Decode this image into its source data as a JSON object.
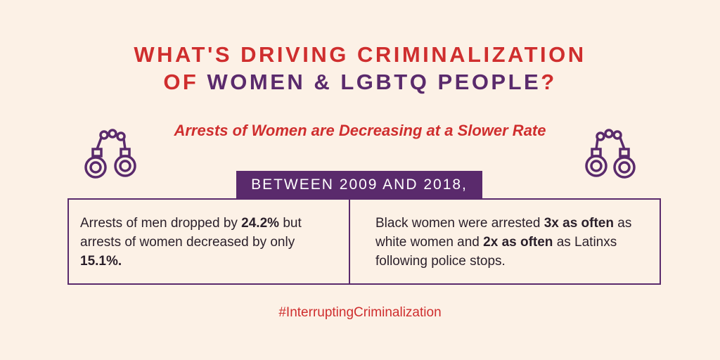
{
  "header": {
    "title_line1": "WHAT'S DRIVING CRIMINALIZATION",
    "title_line2": {
      "prefix": "OF",
      "highlight": "WOMEN & LGBTQ PEOPLE",
      "suffix": "?"
    },
    "subtitle": "Arrests of Women are Decreasing at a Slower Rate"
  },
  "banner": "BETWEEN 2009 AND 2018,",
  "facts": [
    {
      "parts": [
        "Arrests of men dropped by",
        "24.2%",
        "but arrests of women decreased by only",
        "15.1%."
      ]
    },
    {
      "parts": [
        "Black women were arrested",
        "3x as often",
        "as white women and",
        "2x as often",
        "as Latinxs following police stops."
      ]
    }
  ],
  "footer": {
    "hashtag": "#InterruptingCriminalization"
  }
}
